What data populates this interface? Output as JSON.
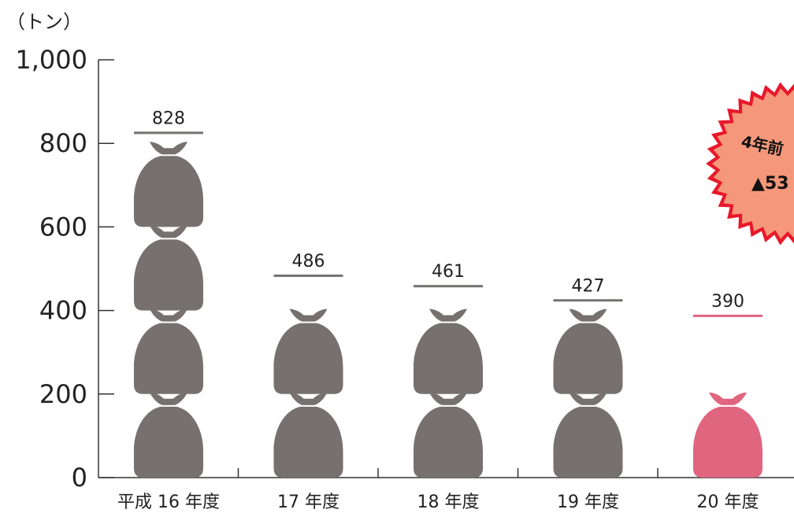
{
  "chart_data": {
    "type": "bar",
    "unit_label": "（トン）",
    "categories": [
      "平成 16 年度",
      "17 年度",
      "18 年度",
      "19 年度",
      "20 年度"
    ],
    "values": [
      828,
      486,
      461,
      427,
      390
    ],
    "data_labels": [
      "828",
      "486",
      "461",
      "427",
      "390"
    ],
    "ylim": [
      0,
      1000
    ],
    "yticks": [
      0,
      200,
      400,
      600,
      800,
      1000
    ],
    "ytick_labels": [
      "0",
      "200",
      "400",
      "600",
      "800",
      "1,000"
    ],
    "bag_unit_value": 200,
    "colors": {
      "default": "#767170",
      "highlight": "#e0657f",
      "burst_fill": "#f4977a",
      "burst_edge": "#e8182b"
    },
    "highlight_index": 4,
    "annotation": {
      "line1": "4年前",
      "line2": "▲53"
    }
  }
}
